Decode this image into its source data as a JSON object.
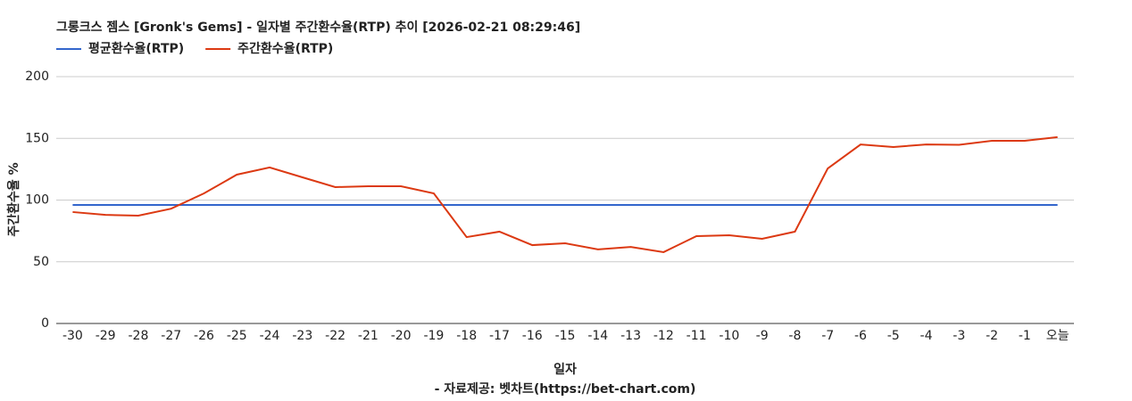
{
  "chart_data": {
    "type": "line",
    "title": "그롱크스 젬스 [Gronk's Gems] - 일자별 주간환수율(RTP) 추이 [2026-02-21 08:29:46]",
    "x_label": "일자",
    "y_label": "주간환수율 %",
    "source": "- 자료제공: 벳차트(https://bet-chart.com)",
    "categories": [
      "-30",
      "-29",
      "-28",
      "-27",
      "-26",
      "-25",
      "-24",
      "-23",
      "-22",
      "-21",
      "-20",
      "-19",
      "-18",
      "-17",
      "-16",
      "-15",
      "-14",
      "-13",
      "-12",
      "-11",
      "-10",
      "-9",
      "-8",
      "-7",
      "-6",
      "-5",
      "-4",
      "-3",
      "-2",
      "-1",
      "오늘"
    ],
    "series": [
      {
        "name": "평균환수율(RTP)",
        "color": "#3366cc",
        "values": [
          96,
          96,
          96,
          96,
          96,
          96,
          96,
          96,
          96,
          96,
          96,
          96,
          96,
          96,
          96,
          96,
          96,
          96,
          96,
          96,
          96,
          96,
          96,
          96,
          96,
          96,
          96,
          96,
          96,
          96,
          96
        ]
      },
      {
        "name": "주간환수율(RTP)",
        "color": "#dc3912",
        "values": [
          90.3,
          88,
          87.4,
          93,
          105.4,
          120.6,
          126.4,
          118.4,
          110.5,
          111.2,
          111.2,
          105.4,
          70,
          74.4,
          63.5,
          65,
          60,
          62,
          57.8,
          70.8,
          71.5,
          68.6,
          74.4,
          125.6,
          145,
          143,
          145,
          144.8,
          148,
          148,
          151
        ]
      }
    ],
    "ylim": [
      0,
      200
    ],
    "yticks": [
      0,
      50,
      100,
      150,
      200
    ],
    "grid": true,
    "legend": "top"
  }
}
